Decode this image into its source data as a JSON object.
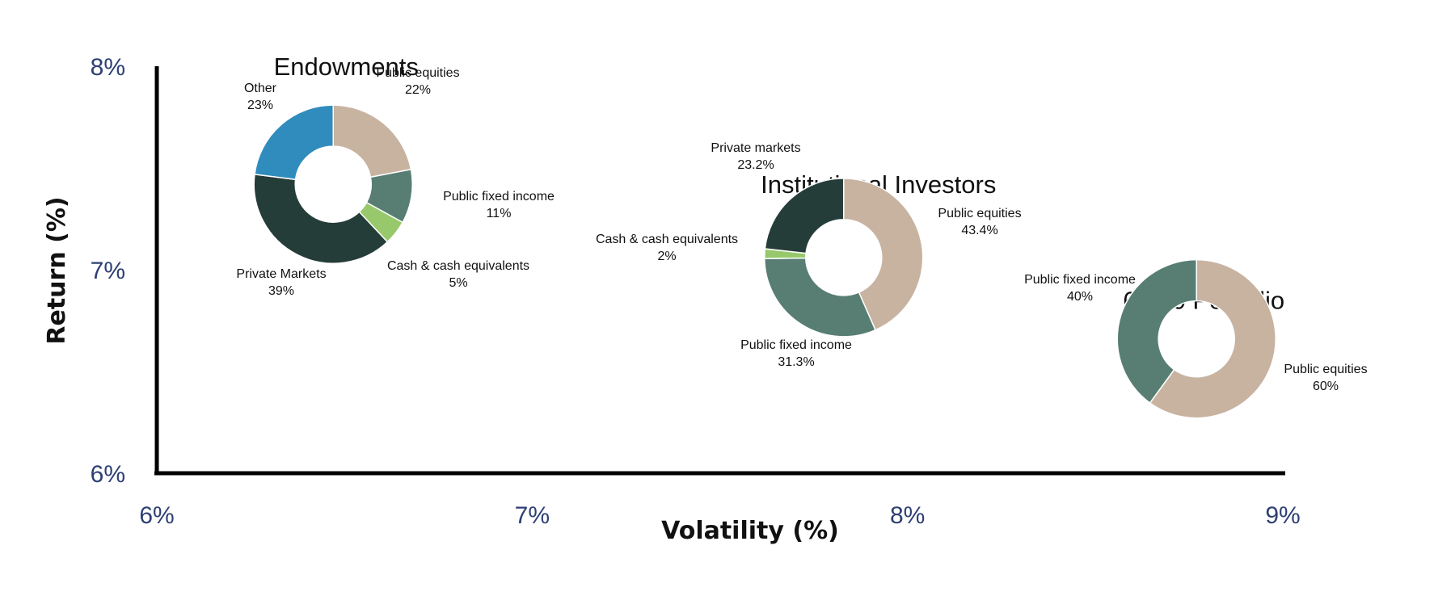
{
  "chart_data": {
    "type": "scatter",
    "xlabel": "Volatility (%)",
    "ylabel": "Return (%)",
    "xlim": [
      6,
      9
    ],
    "ylim": [
      6,
      8
    ],
    "xticks": [
      "6%",
      "7%",
      "8%",
      "9%"
    ],
    "yticks": [
      "6%",
      "7%",
      "8%"
    ],
    "grid": false,
    "points": [
      {
        "title": "Endowments",
        "x": 6.47,
        "y": 7.42,
        "slices": [
          {
            "label": "Public equities",
            "value": 22,
            "value_label": "22%",
            "color": "#c8b3a1"
          },
          {
            "label": "Public fixed income",
            "value": 11,
            "value_label": "11%",
            "color": "#587e74"
          },
          {
            "label": "Cash & cash equivalents",
            "value": 5,
            "value_label": "5%",
            "color": "#97c96c"
          },
          {
            "label": "Private Markets",
            "value": 39,
            "value_label": "39%",
            "color": "#253d38"
          },
          {
            "label": "Other",
            "value": 23,
            "value_label": "23%",
            "color": "#2f8cbc"
          }
        ]
      },
      {
        "title": "Institutional Investors",
        "x": 7.83,
        "y": 7.06,
        "slices": [
          {
            "label": "Public equities",
            "value": 43.4,
            "value_label": "43.4%",
            "color": "#c8b3a1"
          },
          {
            "label": "Public fixed income",
            "value": 31.3,
            "value_label": "31.3%",
            "color": "#587e74"
          },
          {
            "label": "Cash & cash equivalents",
            "value": 2,
            "value_label": "2%",
            "color": "#97c96c"
          },
          {
            "label": "Private markets",
            "value": 23.2,
            "value_label": "23.2%",
            "color": "#253d38"
          }
        ]
      },
      {
        "title": "60/40 Portfolio",
        "x": 8.77,
        "y": 6.66,
        "slices": [
          {
            "label": "Public equities",
            "value": 60,
            "value_label": "60%",
            "color": "#c8b3a1"
          },
          {
            "label": "Public fixed income",
            "value": 40,
            "value_label": "40%",
            "color": "#587e74"
          }
        ]
      }
    ]
  }
}
